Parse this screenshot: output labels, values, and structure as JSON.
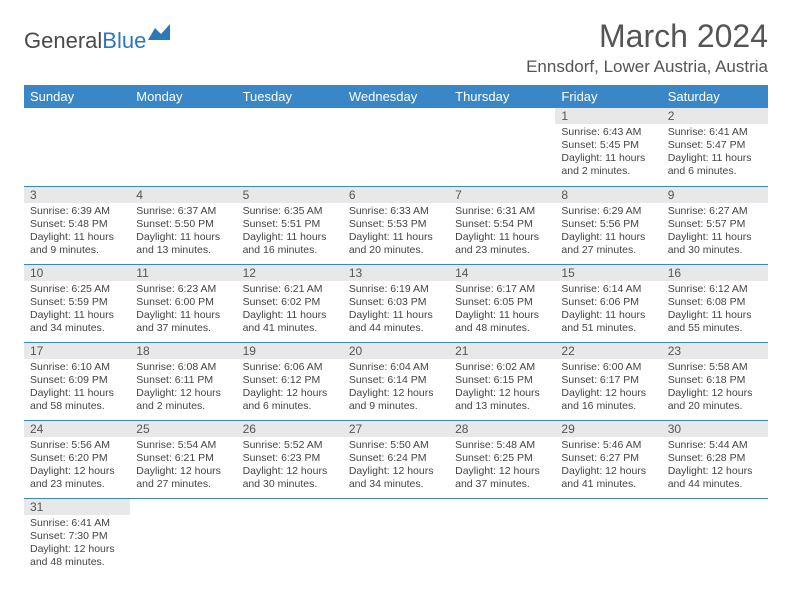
{
  "brand": {
    "part1": "General",
    "part2": "Blue"
  },
  "title": "March 2024",
  "location": "Ennsdorf, Lower Austria, Austria",
  "colors": {
    "header_bg": "#3a87c8",
    "header_fg": "#ffffff",
    "daynum_bg": "#e8e8e8",
    "row_border": "#3a87c8",
    "logo_blue": "#2d78bb"
  },
  "daynames": [
    "Sunday",
    "Monday",
    "Tuesday",
    "Wednesday",
    "Thursday",
    "Friday",
    "Saturday"
  ],
  "weeks": [
    [
      null,
      null,
      null,
      null,
      null,
      {
        "n": "1",
        "sr": "Sunrise: 6:43 AM",
        "ss": "Sunset: 5:45 PM",
        "d1": "Daylight: 11 hours",
        "d2": "and 2 minutes."
      },
      {
        "n": "2",
        "sr": "Sunrise: 6:41 AM",
        "ss": "Sunset: 5:47 PM",
        "d1": "Daylight: 11 hours",
        "d2": "and 6 minutes."
      }
    ],
    [
      {
        "n": "3",
        "sr": "Sunrise: 6:39 AM",
        "ss": "Sunset: 5:48 PM",
        "d1": "Daylight: 11 hours",
        "d2": "and 9 minutes."
      },
      {
        "n": "4",
        "sr": "Sunrise: 6:37 AM",
        "ss": "Sunset: 5:50 PM",
        "d1": "Daylight: 11 hours",
        "d2": "and 13 minutes."
      },
      {
        "n": "5",
        "sr": "Sunrise: 6:35 AM",
        "ss": "Sunset: 5:51 PM",
        "d1": "Daylight: 11 hours",
        "d2": "and 16 minutes."
      },
      {
        "n": "6",
        "sr": "Sunrise: 6:33 AM",
        "ss": "Sunset: 5:53 PM",
        "d1": "Daylight: 11 hours",
        "d2": "and 20 minutes."
      },
      {
        "n": "7",
        "sr": "Sunrise: 6:31 AM",
        "ss": "Sunset: 5:54 PM",
        "d1": "Daylight: 11 hours",
        "d2": "and 23 minutes."
      },
      {
        "n": "8",
        "sr": "Sunrise: 6:29 AM",
        "ss": "Sunset: 5:56 PM",
        "d1": "Daylight: 11 hours",
        "d2": "and 27 minutes."
      },
      {
        "n": "9",
        "sr": "Sunrise: 6:27 AM",
        "ss": "Sunset: 5:57 PM",
        "d1": "Daylight: 11 hours",
        "d2": "and 30 minutes."
      }
    ],
    [
      {
        "n": "10",
        "sr": "Sunrise: 6:25 AM",
        "ss": "Sunset: 5:59 PM",
        "d1": "Daylight: 11 hours",
        "d2": "and 34 minutes."
      },
      {
        "n": "11",
        "sr": "Sunrise: 6:23 AM",
        "ss": "Sunset: 6:00 PM",
        "d1": "Daylight: 11 hours",
        "d2": "and 37 minutes."
      },
      {
        "n": "12",
        "sr": "Sunrise: 6:21 AM",
        "ss": "Sunset: 6:02 PM",
        "d1": "Daylight: 11 hours",
        "d2": "and 41 minutes."
      },
      {
        "n": "13",
        "sr": "Sunrise: 6:19 AM",
        "ss": "Sunset: 6:03 PM",
        "d1": "Daylight: 11 hours",
        "d2": "and 44 minutes."
      },
      {
        "n": "14",
        "sr": "Sunrise: 6:17 AM",
        "ss": "Sunset: 6:05 PM",
        "d1": "Daylight: 11 hours",
        "d2": "and 48 minutes."
      },
      {
        "n": "15",
        "sr": "Sunrise: 6:14 AM",
        "ss": "Sunset: 6:06 PM",
        "d1": "Daylight: 11 hours",
        "d2": "and 51 minutes."
      },
      {
        "n": "16",
        "sr": "Sunrise: 6:12 AM",
        "ss": "Sunset: 6:08 PM",
        "d1": "Daylight: 11 hours",
        "d2": "and 55 minutes."
      }
    ],
    [
      {
        "n": "17",
        "sr": "Sunrise: 6:10 AM",
        "ss": "Sunset: 6:09 PM",
        "d1": "Daylight: 11 hours",
        "d2": "and 58 minutes."
      },
      {
        "n": "18",
        "sr": "Sunrise: 6:08 AM",
        "ss": "Sunset: 6:11 PM",
        "d1": "Daylight: 12 hours",
        "d2": "and 2 minutes."
      },
      {
        "n": "19",
        "sr": "Sunrise: 6:06 AM",
        "ss": "Sunset: 6:12 PM",
        "d1": "Daylight: 12 hours",
        "d2": "and 6 minutes."
      },
      {
        "n": "20",
        "sr": "Sunrise: 6:04 AM",
        "ss": "Sunset: 6:14 PM",
        "d1": "Daylight: 12 hours",
        "d2": "and 9 minutes."
      },
      {
        "n": "21",
        "sr": "Sunrise: 6:02 AM",
        "ss": "Sunset: 6:15 PM",
        "d1": "Daylight: 12 hours",
        "d2": "and 13 minutes."
      },
      {
        "n": "22",
        "sr": "Sunrise: 6:00 AM",
        "ss": "Sunset: 6:17 PM",
        "d1": "Daylight: 12 hours",
        "d2": "and 16 minutes."
      },
      {
        "n": "23",
        "sr": "Sunrise: 5:58 AM",
        "ss": "Sunset: 6:18 PM",
        "d1": "Daylight: 12 hours",
        "d2": "and 20 minutes."
      }
    ],
    [
      {
        "n": "24",
        "sr": "Sunrise: 5:56 AM",
        "ss": "Sunset: 6:20 PM",
        "d1": "Daylight: 12 hours",
        "d2": "and 23 minutes."
      },
      {
        "n": "25",
        "sr": "Sunrise: 5:54 AM",
        "ss": "Sunset: 6:21 PM",
        "d1": "Daylight: 12 hours",
        "d2": "and 27 minutes."
      },
      {
        "n": "26",
        "sr": "Sunrise: 5:52 AM",
        "ss": "Sunset: 6:23 PM",
        "d1": "Daylight: 12 hours",
        "d2": "and 30 minutes."
      },
      {
        "n": "27",
        "sr": "Sunrise: 5:50 AM",
        "ss": "Sunset: 6:24 PM",
        "d1": "Daylight: 12 hours",
        "d2": "and 34 minutes."
      },
      {
        "n": "28",
        "sr": "Sunrise: 5:48 AM",
        "ss": "Sunset: 6:25 PM",
        "d1": "Daylight: 12 hours",
        "d2": "and 37 minutes."
      },
      {
        "n": "29",
        "sr": "Sunrise: 5:46 AM",
        "ss": "Sunset: 6:27 PM",
        "d1": "Daylight: 12 hours",
        "d2": "and 41 minutes."
      },
      {
        "n": "30",
        "sr": "Sunrise: 5:44 AM",
        "ss": "Sunset: 6:28 PM",
        "d1": "Daylight: 12 hours",
        "d2": "and 44 minutes."
      }
    ],
    [
      {
        "n": "31",
        "sr": "Sunrise: 6:41 AM",
        "ss": "Sunset: 7:30 PM",
        "d1": "Daylight: 12 hours",
        "d2": "and 48 minutes."
      },
      null,
      null,
      null,
      null,
      null,
      null
    ]
  ]
}
